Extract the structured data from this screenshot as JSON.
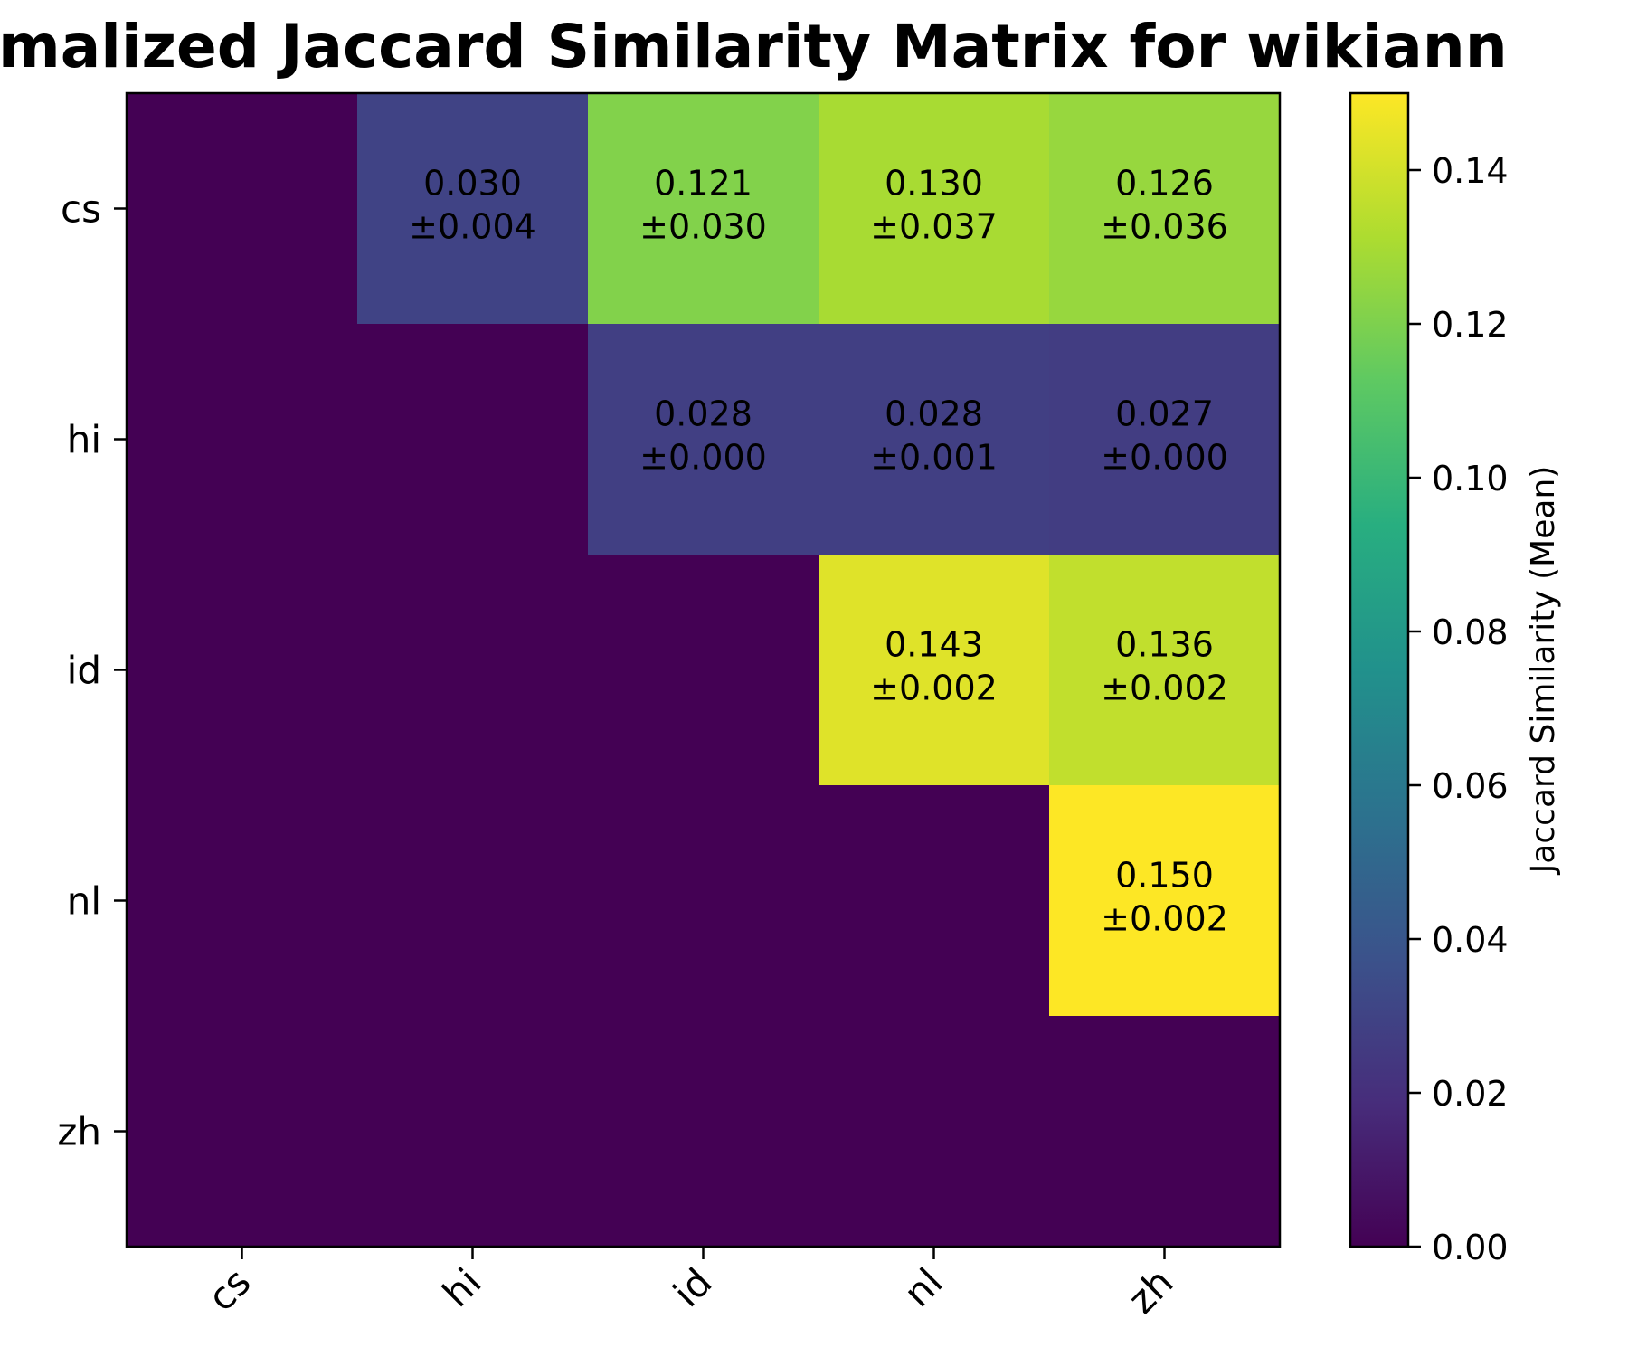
{
  "chart_data": {
    "type": "heatmap",
    "title": "malized Jaccard Similarity Matrix for wikiann",
    "x_categories": [
      "cs",
      "hi",
      "id",
      "nl",
      "zh"
    ],
    "y_categories": [
      "cs",
      "hi",
      "id",
      "nl",
      "zh"
    ],
    "values": [
      [
        0,
        0.03,
        0.121,
        0.13,
        0.126
      ],
      [
        0,
        0,
        0.028,
        0.028,
        0.027
      ],
      [
        0,
        0,
        0,
        0.143,
        0.136
      ],
      [
        0,
        0,
        0,
        0,
        0.15
      ],
      [
        0,
        0,
        0,
        0,
        0
      ]
    ],
    "cells": [
      {
        "row": 0,
        "col": 1,
        "mean": "0.030",
        "std": "±0.004"
      },
      {
        "row": 0,
        "col": 2,
        "mean": "0.121",
        "std": "±0.030"
      },
      {
        "row": 0,
        "col": 3,
        "mean": "0.130",
        "std": "±0.037"
      },
      {
        "row": 0,
        "col": 4,
        "mean": "0.126",
        "std": "±0.036"
      },
      {
        "row": 1,
        "col": 2,
        "mean": "0.028",
        "std": "±0.000"
      },
      {
        "row": 1,
        "col": 3,
        "mean": "0.028",
        "std": "±0.001"
      },
      {
        "row": 1,
        "col": 4,
        "mean": "0.027",
        "std": "±0.000"
      },
      {
        "row": 2,
        "col": 3,
        "mean": "0.143",
        "std": "±0.002"
      },
      {
        "row": 2,
        "col": 4,
        "mean": "0.136",
        "std": "±0.002"
      },
      {
        "row": 3,
        "col": 4,
        "mean": "0.150",
        "std": "±0.002"
      }
    ],
    "colormap": "viridis",
    "colorbar": {
      "label": "Jaccard Similarity (Mean)",
      "range": [
        0,
        0.15
      ],
      "ticks": [
        0.0,
        0.02,
        0.04,
        0.06,
        0.08,
        0.1,
        0.12,
        0.14
      ],
      "tick_labels": [
        "0.00",
        "0.02",
        "0.04",
        "0.06",
        "0.08",
        "0.10",
        "0.12",
        "0.14"
      ]
    },
    "grid": false
  }
}
